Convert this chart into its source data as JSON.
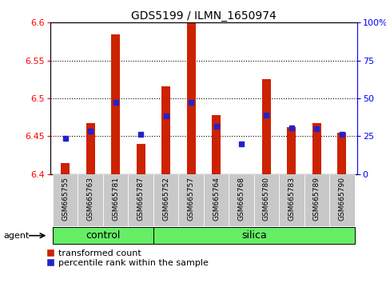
{
  "title": "GDS5199 / ILMN_1650974",
  "samples": [
    "GSM665755",
    "GSM665763",
    "GSM665781",
    "GSM665787",
    "GSM665752",
    "GSM665757",
    "GSM665764",
    "GSM665768",
    "GSM665780",
    "GSM665783",
    "GSM665789",
    "GSM665790"
  ],
  "groups": [
    "control",
    "control",
    "control",
    "control",
    "silica",
    "silica",
    "silica",
    "silica",
    "silica",
    "silica",
    "silica",
    "silica"
  ],
  "red_values": [
    6.415,
    6.467,
    6.585,
    6.44,
    6.516,
    6.6,
    6.478,
    6.4,
    6.525,
    6.462,
    6.467,
    6.455
  ],
  "blue_values": [
    6.447,
    6.457,
    6.495,
    6.452,
    6.477,
    6.495,
    6.463,
    6.44,
    6.478,
    6.461,
    6.46,
    6.453
  ],
  "y_min": 6.4,
  "y_max": 6.6,
  "y_ticks_left": [
    6.4,
    6.45,
    6.5,
    6.55,
    6.6
  ],
  "y_ticks_right": [
    0,
    25,
    50,
    75,
    100
  ],
  "bar_color": "#cc2200",
  "dot_color": "#2222cc",
  "bar_baseline": 6.4,
  "group_bar_color": "#66ee66",
  "grid_color": "#000000",
  "tick_bg": "#c8c8c8",
  "legend_red": "transformed count",
  "legend_blue": "percentile rank within the sample",
  "agent_label": "agent",
  "bar_width": 0.35,
  "n_control": 4,
  "n_silica": 8
}
